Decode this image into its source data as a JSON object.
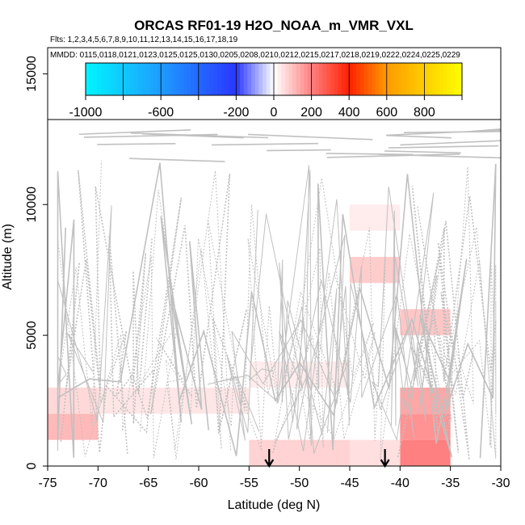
{
  "chart_data": {
    "type": "heatmap",
    "title": "ORCAS RF01-19 H2O_NOAA_m_VMR_VXL",
    "subtitle_flights": "Flts: 1,2,3,4,5,6,7,8,9,10,11,12,13,14,15,16,17,18,19",
    "subtitle_dates": "MMDD: 0115,0118,0121,0123,0125,0125,0130,0205,0208,0210,0212,0215,0217,0218,0219,0222,0224,0225,0229",
    "xlabel": "Latitude (deg N)",
    "ylabel": "Altitude (m)",
    "xlim": [
      -75,
      -30
    ],
    "ylim": [
      0,
      16000
    ],
    "xticks": [
      -75,
      -70,
      -65,
      -60,
      -55,
      -50,
      -45,
      -40,
      -35,
      -30
    ],
    "yticks": [
      0,
      5000,
      10000,
      15000
    ],
    "colorbar": {
      "range": [
        -1000,
        1000
      ],
      "ticks": [
        -1000,
        -600,
        -200,
        0,
        200,
        400,
        600,
        800
      ],
      "colors": {
        "cyan": "#00f5ff",
        "blue": "#2a36ff",
        "white": "#ffffff",
        "light_red": "#ff8080",
        "red": "#ff2000",
        "orange": "#ff9a00",
        "yellow": "#ffff00"
      }
    },
    "arrows_latitude": [
      -53,
      -41.5
    ],
    "track_color": "#c0c0c0",
    "cells": [
      {
        "lat": [
          -75,
          -70
        ],
        "alt": [
          2000,
          3000
        ],
        "value": 60
      },
      {
        "lat": [
          -75,
          -70
        ],
        "alt": [
          1000,
          2000
        ],
        "value": 110
      },
      {
        "lat": [
          -70,
          -55
        ],
        "alt": [
          2000,
          3000
        ],
        "value": 40
      },
      {
        "lat": [
          -55,
          -45
        ],
        "alt": [
          3000,
          4000
        ],
        "value": 30
      },
      {
        "lat": [
          -55,
          -45
        ],
        "alt": [
          0,
          1000
        ],
        "value": 70
      },
      {
        "lat": [
          -45,
          -40
        ],
        "alt": [
          9000,
          10000
        ],
        "value": 30
      },
      {
        "lat": [
          -45,
          -40
        ],
        "alt": [
          7000,
          8000
        ],
        "value": 80
      },
      {
        "lat": [
          -40,
          -35
        ],
        "alt": [
          5000,
          6000
        ],
        "value": 90
      },
      {
        "lat": [
          -40,
          -35
        ],
        "alt": [
          2000,
          3000
        ],
        "value": 140
      },
      {
        "lat": [
          -40,
          -35
        ],
        "alt": [
          1000,
          2000
        ],
        "value": 170
      },
      {
        "lat": [
          -40,
          -35
        ],
        "alt": [
          0,
          1000
        ],
        "value": 200
      },
      {
        "lat": [
          -45,
          -40
        ],
        "alt": [
          0,
          1000
        ],
        "value": 50
      }
    ]
  }
}
